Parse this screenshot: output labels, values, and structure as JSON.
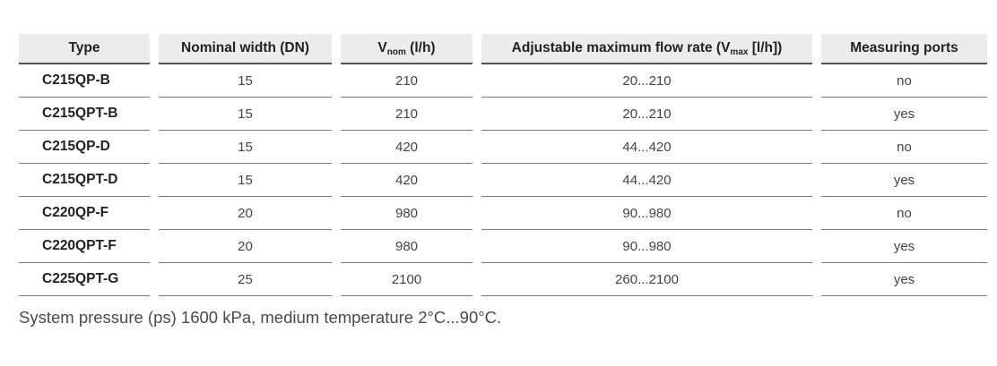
{
  "table": {
    "headers": {
      "type": "Type",
      "nominal_width": "Nominal width (DN)",
      "vnom_prefix": "V",
      "vnom_sub": "nom",
      "vnom_suffix": " (l/h)",
      "vmax_prefix": "Adjustable maximum flow rate (V",
      "vmax_sub": "max",
      "vmax_suffix": " [l/h])",
      "measuring_ports": "Measuring ports"
    },
    "rows": [
      {
        "type": "C215QP-B",
        "dn": "15",
        "vnom": "210",
        "vmax": "20...210",
        "ports": "no"
      },
      {
        "type": "C215QPT-B",
        "dn": "15",
        "vnom": "210",
        "vmax": "20...210",
        "ports": "yes"
      },
      {
        "type": "C215QP-D",
        "dn": "15",
        "vnom": "420",
        "vmax": "44...420",
        "ports": "no"
      },
      {
        "type": "C215QPT-D",
        "dn": "15",
        "vnom": "420",
        "vmax": "44...420",
        "ports": "yes"
      },
      {
        "type": "C220QP-F",
        "dn": "20",
        "vnom": "980",
        "vmax": "90...980",
        "ports": "no"
      },
      {
        "type": "C220QPT-F",
        "dn": "20",
        "vnom": "980",
        "vmax": "90...980",
        "ports": "yes"
      },
      {
        "type": "C225QPT-G",
        "dn": "25",
        "vnom": "2100",
        "vmax": "260...2100",
        "ports": "yes"
      }
    ]
  },
  "footnote": "System pressure (ps) 1600 kPa, medium temperature 2°C...90°C."
}
